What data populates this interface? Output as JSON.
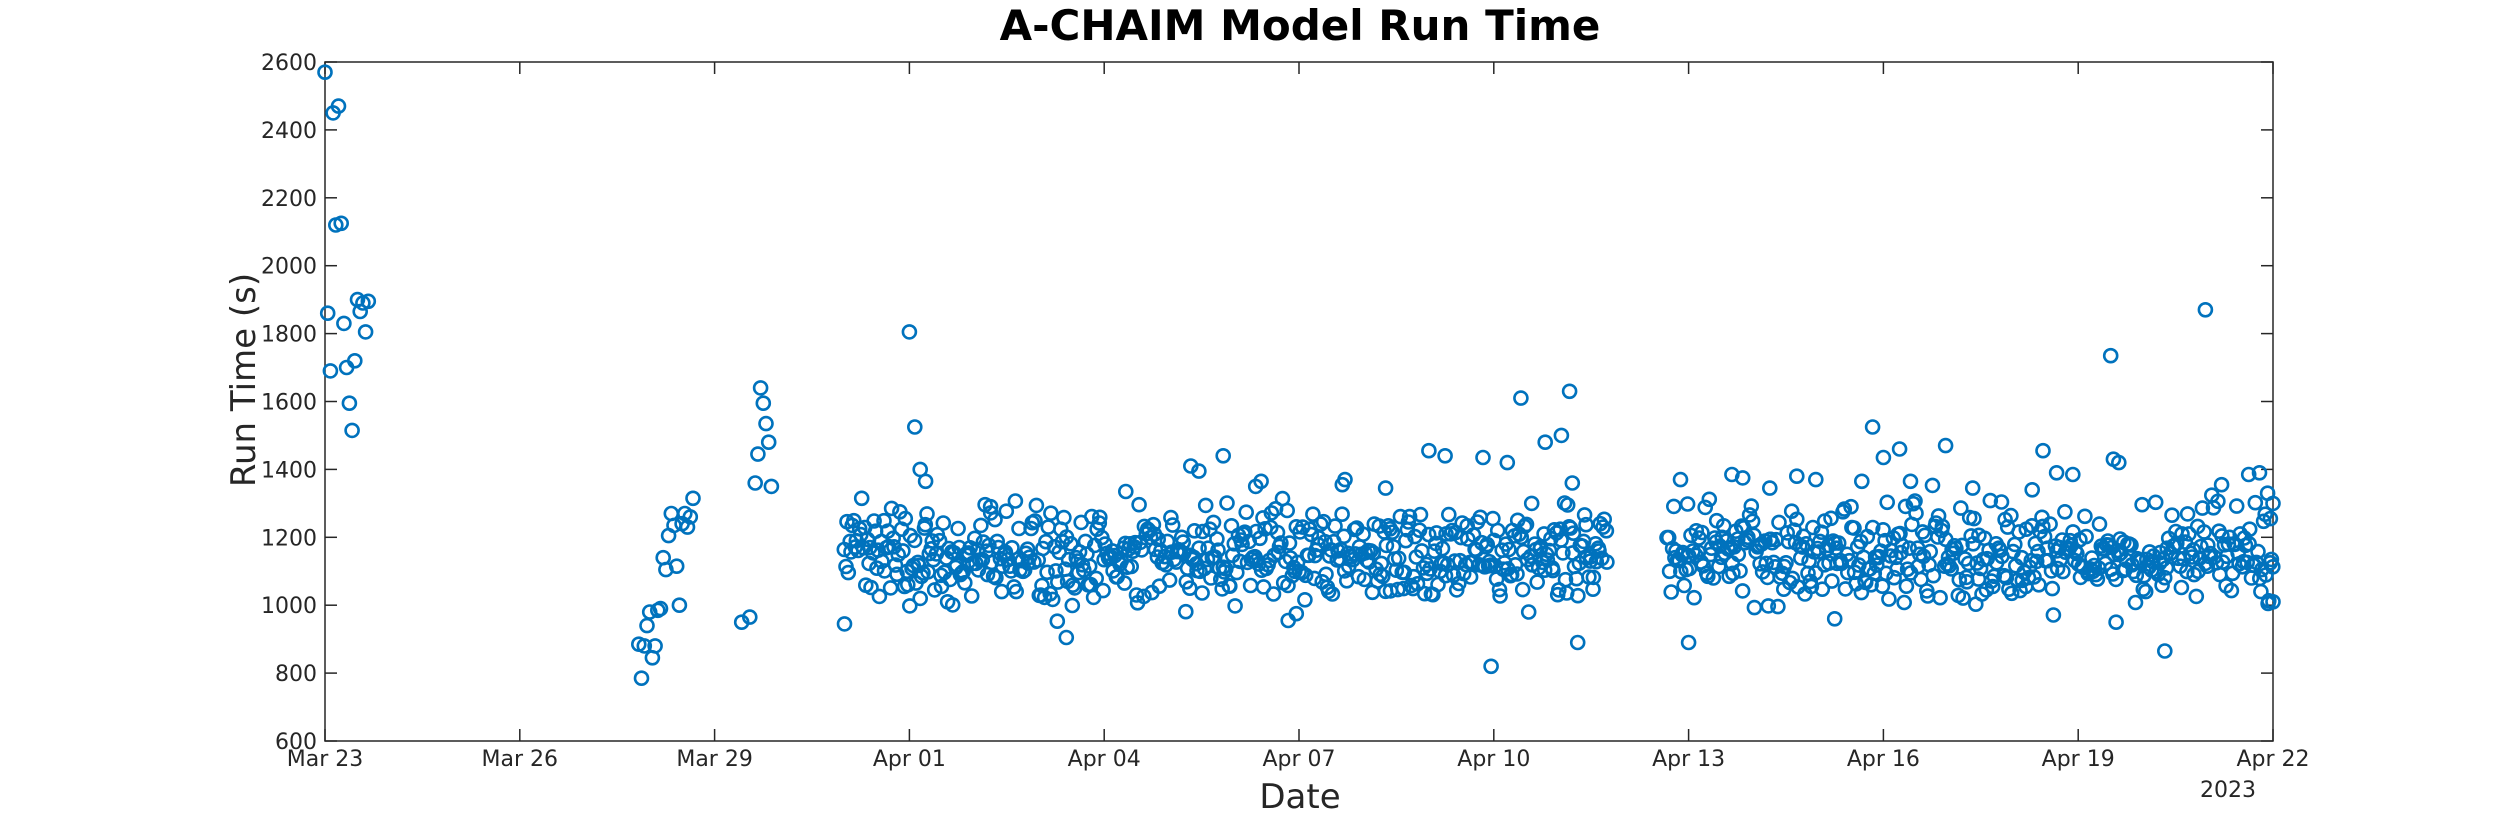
{
  "chart_data": {
    "type": "scatter",
    "title": "A-CHAIM Model Run Time",
    "xlabel": "Date",
    "ylabel": "Run Time (s)",
    "xlim": [
      "2023-03-23",
      "2023-04-22"
    ],
    "ylim": [
      600,
      2600
    ],
    "x_ticks": [
      {
        "date": "2023-03-23",
        "label": "Mar 23"
      },
      {
        "date": "2023-03-26",
        "label": "Mar 26"
      },
      {
        "date": "2023-03-29",
        "label": "Mar 29"
      },
      {
        "date": "2023-04-01",
        "label": "Apr 01"
      },
      {
        "date": "2023-04-04",
        "label": "Apr 04"
      },
      {
        "date": "2023-04-07",
        "label": "Apr 07"
      },
      {
        "date": "2023-04-10",
        "label": "Apr 10"
      },
      {
        "date": "2023-04-13",
        "label": "Apr 13"
      },
      {
        "date": "2023-04-16",
        "label": "Apr 16"
      },
      {
        "date": "2023-04-19",
        "label": "Apr 19"
      },
      {
        "date": "2023-04-22",
        "label": "Apr 22"
      }
    ],
    "x_secondary_label": "2023",
    "y_ticks": [
      600,
      800,
      1000,
      1200,
      1400,
      1600,
      1800,
      2000,
      2200,
      2400,
      2600
    ],
    "grid": false,
    "marker": "open-circle",
    "color": "#0072BD",
    "series": [
      {
        "points": [
          [
            "2023-03-23 00:00",
            2570
          ],
          [
            "2023-03-23 01:00",
            1860
          ],
          [
            "2023-03-23 02:00",
            1690
          ],
          [
            "2023-03-23 03:00",
            2450
          ],
          [
            "2023-03-23 04:00",
            2120
          ],
          [
            "2023-03-23 05:00",
            2470
          ],
          [
            "2023-03-23 06:00",
            2125
          ],
          [
            "2023-03-23 07:00",
            1830
          ],
          [
            "2023-03-23 08:00",
            1700
          ],
          [
            "2023-03-23 09:00",
            1595
          ],
          [
            "2023-03-23 10:00",
            1515
          ],
          [
            "2023-03-23 11:00",
            1720
          ],
          [
            "2023-03-23 12:00",
            1900
          ],
          [
            "2023-03-23 13:00",
            1865
          ],
          [
            "2023-03-23 14:00",
            1890
          ],
          [
            "2023-03-23 15:00",
            1805
          ],
          [
            "2023-03-23 16:00",
            1895
          ],
          [
            "2023-03-27 20:00",
            885
          ],
          [
            "2023-03-27 21:00",
            785
          ],
          [
            "2023-03-27 22:00",
            880
          ],
          [
            "2023-03-27 23:00",
            940
          ],
          [
            "2023-03-28 00:00",
            980
          ],
          [
            "2023-03-28 01:00",
            845
          ],
          [
            "2023-03-28 02:00",
            880
          ],
          [
            "2023-03-28 03:00",
            985
          ],
          [
            "2023-03-28 04:00",
            990
          ],
          [
            "2023-03-28 05:00",
            1140
          ],
          [
            "2023-03-28 06:00",
            1105
          ],
          [
            "2023-03-28 07:00",
            1205
          ],
          [
            "2023-03-28 08:00",
            1270
          ],
          [
            "2023-03-28 09:00",
            1235
          ],
          [
            "2023-03-28 10:00",
            1115
          ],
          [
            "2023-03-28 11:00",
            1000
          ],
          [
            "2023-03-28 12:00",
            1240
          ],
          [
            "2023-03-28 13:00",
            1270
          ],
          [
            "2023-03-28 14:00",
            1230
          ],
          [
            "2023-03-28 15:00",
            1260
          ],
          [
            "2023-03-28 16:00",
            1315
          ],
          [
            "2023-03-29 10:00",
            950
          ],
          [
            "2023-03-29 13:00",
            965
          ],
          [
            "2023-03-29 15:00",
            1360
          ],
          [
            "2023-03-29 16:00",
            1445
          ],
          [
            "2023-03-29 17:00",
            1640
          ],
          [
            "2023-03-29 18:00",
            1595
          ],
          [
            "2023-03-29 19:00",
            1535
          ],
          [
            "2023-03-29 20:00",
            1480
          ],
          [
            "2023-03-29 21:00",
            1350
          ]
        ],
        "main_cluster": {
          "x_range": [
            "2023-03-31 00:00",
            "2023-04-22 00:00"
          ],
          "typical_range": [
            950,
            1350
          ],
          "gap": [
            "2023-04-11 18:00",
            "2023-04-12 16:00"
          ]
        },
        "outliers": [
          [
            "2023-03-31 00:00",
            945
          ],
          [
            "2023-04-01 00:00",
            1805
          ],
          [
            "2023-04-01 02:00",
            1525
          ],
          [
            "2023-04-01 04:00",
            1400
          ],
          [
            "2023-04-01 06:00",
            1365
          ],
          [
            "2023-04-02 06:00",
            1290
          ],
          [
            "2023-04-03 10:00",
            905
          ],
          [
            "2023-04-04 08:00",
            1335
          ],
          [
            "2023-04-05 08:00",
            1410
          ],
          [
            "2023-04-05 11:00",
            1395
          ],
          [
            "2023-04-05 20:00",
            1440
          ],
          [
            "2023-04-06 08:00",
            1350
          ],
          [
            "2023-04-06 10:00",
            1365
          ],
          [
            "2023-04-06 20:00",
            955
          ],
          [
            "2023-04-06 23:00",
            975
          ],
          [
            "2023-04-07 17:00",
            1370
          ],
          [
            "2023-04-07 16:00",
            1355
          ],
          [
            "2023-04-08 08:00",
            1345
          ],
          [
            "2023-04-09 00:00",
            1455
          ],
          [
            "2023-04-09 06:00",
            1440
          ],
          [
            "2023-04-09 20:00",
            1435
          ],
          [
            "2023-04-09 23:00",
            820
          ],
          [
            "2023-04-10 05:00",
            1420
          ],
          [
            "2023-04-10 10:00",
            1610
          ],
          [
            "2023-04-10 14:00",
            1300
          ],
          [
            "2023-04-10 19:00",
            1480
          ],
          [
            "2023-04-11 01:00",
            1500
          ],
          [
            "2023-04-11 04:00",
            1630
          ],
          [
            "2023-04-11 05:00",
            1360
          ],
          [
            "2023-04-11 07:00",
            890
          ],
          [
            "2023-04-12 21:00",
            1370
          ],
          [
            "2023-04-13 00:00",
            890
          ],
          [
            "2023-04-13 16:00",
            1385
          ],
          [
            "2023-04-13 20:00",
            1375
          ],
          [
            "2023-04-14 06:00",
            1345
          ],
          [
            "2023-04-14 16:00",
            1380
          ],
          [
            "2023-04-14 23:00",
            1370
          ],
          [
            "2023-04-15 06:00",
            960
          ],
          [
            "2023-04-15 16:00",
            1365
          ],
          [
            "2023-04-15 20:00",
            1525
          ],
          [
            "2023-04-16 00:00",
            1435
          ],
          [
            "2023-04-16 06:00",
            1460
          ],
          [
            "2023-04-16 10:00",
            1365
          ],
          [
            "2023-04-16 23:00",
            1470
          ],
          [
            "2023-04-17 09:00",
            1345
          ],
          [
            "2023-04-18 07:00",
            1340
          ],
          [
            "2023-04-18 11:00",
            1455
          ],
          [
            "2023-04-18 16:00",
            1390
          ],
          [
            "2023-04-18 22:00",
            1385
          ],
          [
            "2023-04-19 12:00",
            1735
          ],
          [
            "2023-04-19 13:00",
            1430
          ],
          [
            "2023-04-19 15:00",
            1420
          ],
          [
            "2023-04-19 14:00",
            950
          ],
          [
            "2023-04-20 08:00",
            865
          ],
          [
            "2023-04-20 23:00",
            1870
          ],
          [
            "2023-04-21 05:00",
            1355
          ],
          [
            "2023-04-21 15:00",
            1385
          ],
          [
            "2023-04-21 19:00",
            1390
          ],
          [
            "2023-04-21 22:00",
            1330
          ],
          [
            "2023-04-22 00:00",
            1300
          ],
          [
            "2023-04-22 00:00",
            1010
          ],
          [
            "2023-04-21 23:00",
            1125
          ]
        ]
      }
    ]
  }
}
